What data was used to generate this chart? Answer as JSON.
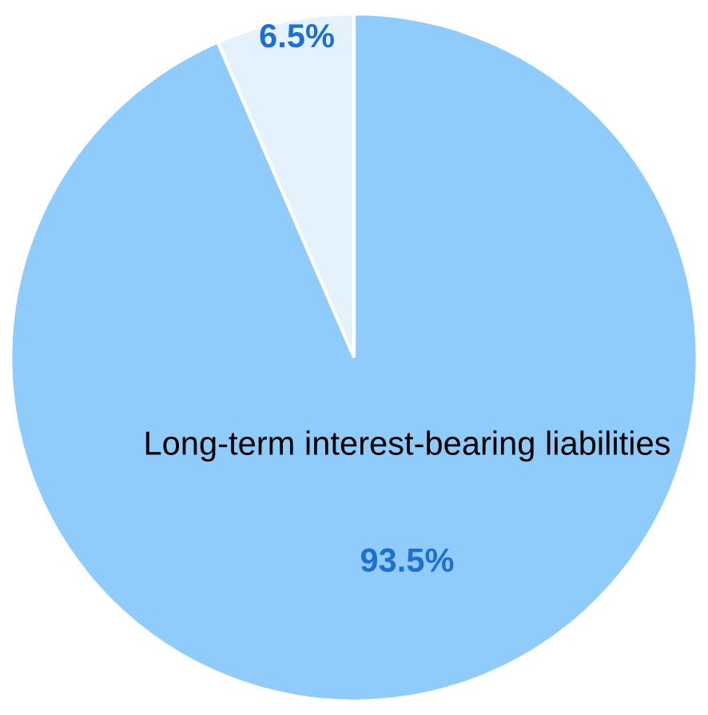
{
  "chart_data": {
    "type": "pie",
    "categories": [
      null,
      "Long-term interest-bearing liabilities"
    ],
    "values": [
      6.5,
      93.5
    ],
    "colors": [
      "#e3f2fd",
      "#8fcbfb"
    ],
    "value_labels": [
      "6.5%",
      "93.5%"
    ]
  }
}
